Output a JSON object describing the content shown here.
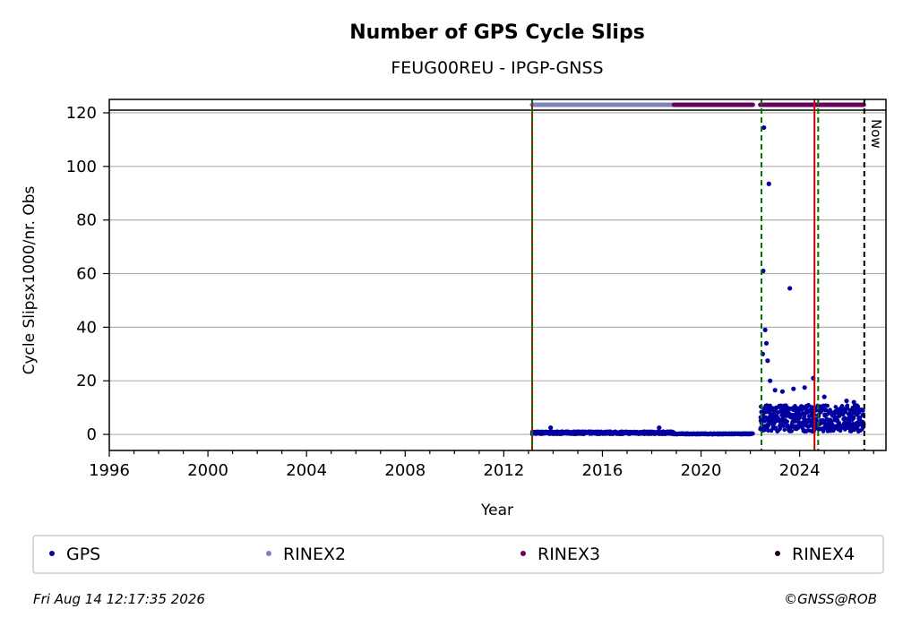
{
  "chart_data": {
    "type": "scatter",
    "title": "Number of GPS Cycle Slips",
    "subtitle": "FEUG00REU - IPGP-GNSS",
    "xlabel": "Year",
    "ylabel": "Cycle Slipsx1000/nr. Obs",
    "xlim": [
      1996,
      2027.5
    ],
    "ylim": [
      -6,
      125
    ],
    "xticks": [
      1996,
      2000,
      2004,
      2008,
      2012,
      2016,
      2020,
      2024
    ],
    "yticks": [
      0,
      20,
      40,
      60,
      80,
      100,
      120
    ],
    "grid": "horizontal",
    "threshold_line": 121,
    "legend": {
      "placement": "bottom",
      "entries": [
        {
          "label": "GPS",
          "color": "#0000a0"
        },
        {
          "label": "RINEX2",
          "color": "#8080c0"
        },
        {
          "label": "RINEX3",
          "color": "#6a0060"
        },
        {
          "label": "RINEX4",
          "color": "#200020"
        }
      ]
    },
    "format_bars": [
      {
        "format": "RINEX2",
        "start": 2013.15,
        "end": 2018.9,
        "y": 123
      },
      {
        "format": "RINEX3",
        "start": 2018.9,
        "end": 2022.1,
        "y": 123
      },
      {
        "format": "RINEX3",
        "start": 2022.4,
        "end": 2026.6,
        "y": 123
      }
    ],
    "vertical_lines": [
      {
        "x": 2013.15,
        "color": "#cc0000",
        "style": "solid"
      },
      {
        "x": 2013.15,
        "color": "#007700",
        "style": "dashed"
      },
      {
        "x": 2022.45,
        "color": "#007700",
        "style": "dashed"
      },
      {
        "x": 2024.6,
        "color": "#cc0000",
        "style": "solid"
      },
      {
        "x": 2024.75,
        "color": "#007700",
        "style": "dashed"
      },
      {
        "x": 2026.62,
        "color": "#000000",
        "style": "dashed",
        "label": "Now"
      }
    ],
    "series": [
      {
        "name": "GPS",
        "color": "#0000a0",
        "segments": [
          {
            "start": 2013.15,
            "end": 2018.9,
            "base": 0.6,
            "amp": 0.8
          },
          {
            "start": 2018.9,
            "end": 2022.1,
            "base": 0.2,
            "amp": 0.3
          },
          {
            "start": 2022.4,
            "end": 2026.6,
            "base": 6.0,
            "amp": 5.5
          }
        ],
        "peaks": [
          {
            "x": 2013.9,
            "y": 2.5
          },
          {
            "x": 2018.3,
            "y": 2.5
          },
          {
            "x": 2022.55,
            "y": 114.5
          },
          {
            "x": 2022.75,
            "y": 93.5
          },
          {
            "x": 2022.52,
            "y": 61
          },
          {
            "x": 2022.6,
            "y": 39
          },
          {
            "x": 2022.65,
            "y": 34
          },
          {
            "x": 2022.5,
            "y": 30
          },
          {
            "x": 2022.7,
            "y": 27.5
          },
          {
            "x": 2023.6,
            "y": 54.5
          },
          {
            "x": 2022.8,
            "y": 20
          },
          {
            "x": 2023.0,
            "y": 16.5
          },
          {
            "x": 2023.3,
            "y": 16
          },
          {
            "x": 2023.75,
            "y": 17
          },
          {
            "x": 2024.2,
            "y": 17.5
          },
          {
            "x": 2024.55,
            "y": 21
          },
          {
            "x": 2025.0,
            "y": 14
          },
          {
            "x": 2025.9,
            "y": 12.5
          },
          {
            "x": 2026.2,
            "y": 12
          }
        ]
      }
    ]
  },
  "footer": {
    "timestamp": "Fri Aug 14 12:17:35 2026",
    "credit": "©GNSS@ROB"
  }
}
